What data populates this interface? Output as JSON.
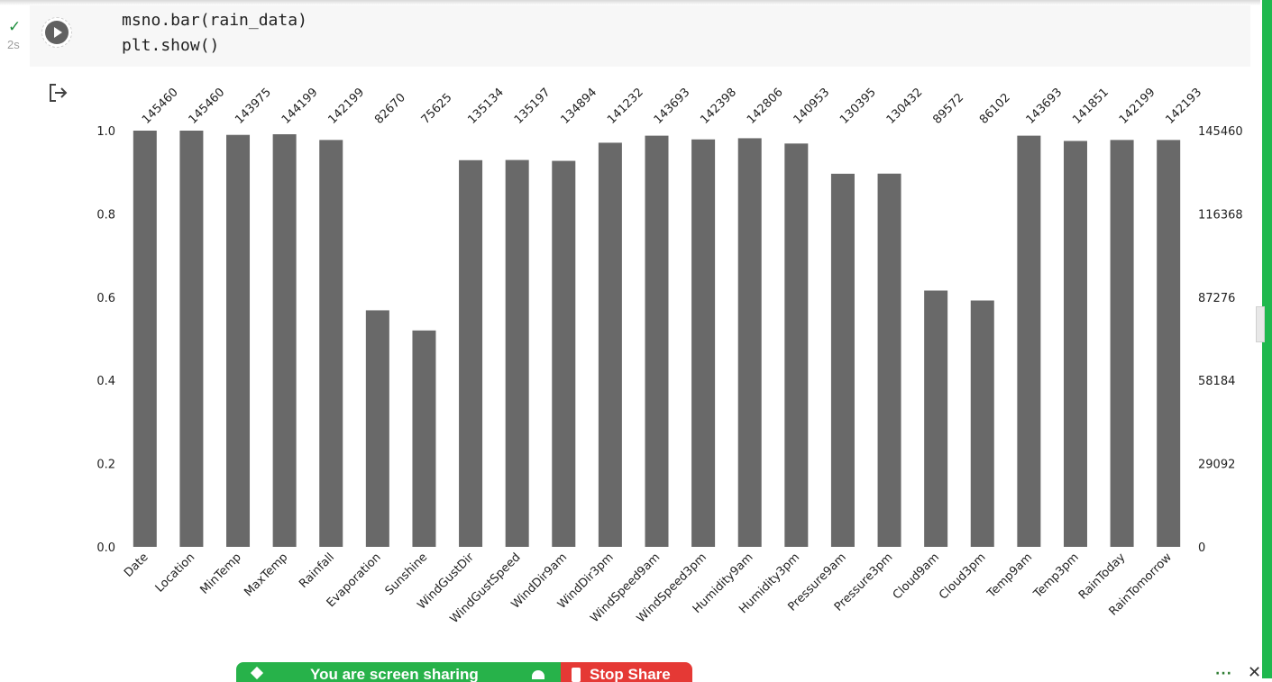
{
  "cell": {
    "status_icon": "check-icon",
    "status_symbol": "✓",
    "exec_time": "2s",
    "code_lines": [
      "msno.bar(rain_data)",
      "plt.show()"
    ]
  },
  "output": {
    "icon": "output-redirect-icon"
  },
  "chart_data": {
    "type": "bar",
    "bar_color": "#696969",
    "categories": [
      "Date",
      "Location",
      "MinTemp",
      "MaxTemp",
      "Rainfall",
      "Evaporation",
      "Sunshine",
      "WindGustDir",
      "WindGustSpeed",
      "WindDir9am",
      "WindDir3pm",
      "WindSpeed9am",
      "WindSpeed3pm",
      "Humidity9am",
      "Humidity3pm",
      "Pressure9am",
      "Pressure3pm",
      "Cloud9am",
      "Cloud3pm",
      "Temp9am",
      "Temp3pm",
      "RainToday",
      "RainTomorrow"
    ],
    "counts": [
      145460,
      145460,
      143975,
      144199,
      142199,
      82670,
      75625,
      135134,
      135197,
      134894,
      141232,
      143693,
      142398,
      142806,
      140953,
      130395,
      130432,
      89572,
      86102,
      143693,
      141851,
      142199,
      142193
    ],
    "total": 145460,
    "ylim": [
      0,
      1.0
    ],
    "left_ticks": [
      "0.0",
      "0.2",
      "0.4",
      "0.6",
      "0.8",
      "1.0"
    ],
    "right_ticks": [
      "0",
      "29092",
      "58184",
      "87276",
      "116368",
      "145460"
    ],
    "title": "",
    "xlabel": "",
    "ylabel": "",
    "grid": false
  },
  "share_bar": {
    "text": "You are screen sharing",
    "stop_label": "Stop Share",
    "accent_color": "#27b24a",
    "stop_color": "#e53935"
  },
  "window_controls": {
    "more": "···",
    "close": "✕"
  }
}
